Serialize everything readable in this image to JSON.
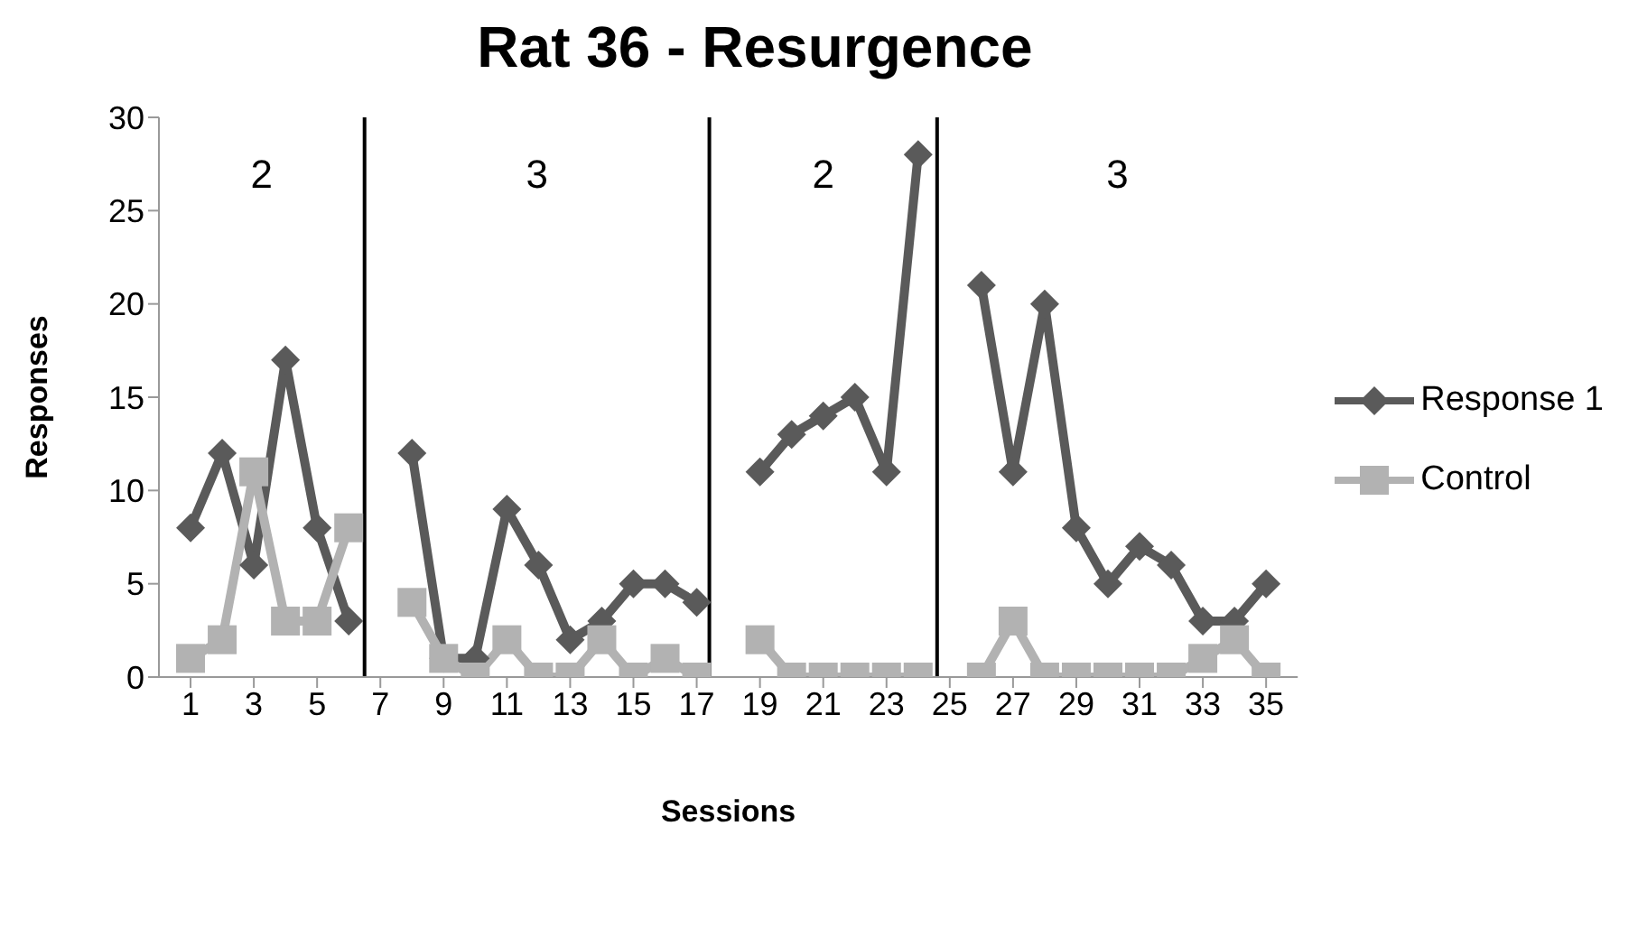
{
  "chart_data": {
    "type": "line",
    "title": "Rat 36 - Resurgence",
    "xlabel": "Sessions",
    "ylabel": "Responses",
    "x": [
      1,
      2,
      3,
      4,
      5,
      6,
      7,
      8,
      9,
      10,
      11,
      12,
      13,
      14,
      15,
      16,
      17,
      18,
      19,
      20,
      21,
      22,
      23,
      24,
      25,
      26,
      27,
      28,
      29,
      30,
      31,
      32,
      33,
      34,
      35
    ],
    "xlim": [
      0,
      36
    ],
    "xticks": [
      1,
      3,
      5,
      7,
      9,
      11,
      13,
      15,
      17,
      19,
      21,
      23,
      25,
      27,
      29,
      31,
      33,
      35
    ],
    "ylim": [
      0,
      30
    ],
    "yticks": [
      0,
      5,
      10,
      15,
      20,
      25,
      30
    ],
    "series": [
      {
        "name": "Response 1",
        "color": "#5a5a5a",
        "marker": "diamond",
        "values": [
          8,
          12,
          6,
          17,
          8,
          3,
          null,
          12,
          1,
          1,
          9,
          6,
          2,
          3,
          5,
          5,
          4,
          null,
          11,
          13,
          14,
          15,
          11,
          28,
          null,
          21,
          11,
          20,
          8,
          5,
          7,
          6,
          3,
          3,
          5
        ]
      },
      {
        "name": "Control",
        "color": "#b2b2b2",
        "marker": "square",
        "values": [
          1,
          2,
          11,
          3,
          3,
          8,
          null,
          4,
          1,
          0,
          2,
          0,
          0,
          2,
          0,
          1,
          0,
          null,
          2,
          0,
          0,
          0,
          0,
          0,
          null,
          0,
          3,
          0,
          0,
          0,
          0,
          0,
          1,
          2,
          0
        ]
      }
    ],
    "ref_lines": [
      {
        "axis": "x",
        "value": 6.5,
        "color": "#000000"
      },
      {
        "axis": "x",
        "value": 17.4,
        "color": "#000000"
      },
      {
        "axis": "x",
        "value": 24.6,
        "color": "#000000"
      }
    ],
    "annotations": [
      "2",
      "3",
      "2",
      "3"
    ],
    "grid": false,
    "legend": "right"
  }
}
